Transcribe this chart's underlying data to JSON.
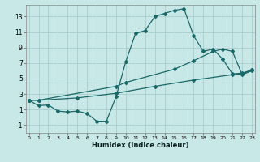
{
  "bg_color": "#c8e8e8",
  "grid_color": "#aacece",
  "line_color": "#1a6868",
  "xlim": [
    -0.3,
    23.3
  ],
  "ylim": [
    -2.0,
    14.5
  ],
  "xticks": [
    0,
    1,
    2,
    3,
    4,
    5,
    6,
    7,
    8,
    9,
    10,
    11,
    12,
    13,
    14,
    15,
    16,
    17,
    18,
    19,
    20,
    21,
    22,
    23
  ],
  "yticks": [
    -1,
    1,
    3,
    5,
    7,
    9,
    11,
    13
  ],
  "xlabel": "Humidex (Indice chaleur)",
  "curve1_x": [
    0,
    1,
    2,
    3,
    4,
    5,
    6,
    7,
    8,
    9,
    10,
    11,
    12,
    13,
    14,
    15,
    16,
    17,
    18,
    19,
    20,
    21,
    22,
    23
  ],
  "curve1_y": [
    2.2,
    1.5,
    1.6,
    0.8,
    0.7,
    0.8,
    0.5,
    -0.5,
    -0.5,
    2.7,
    7.2,
    10.8,
    11.2,
    13.0,
    13.4,
    13.8,
    14.0,
    10.5,
    8.5,
    8.8,
    7.5,
    5.6,
    5.7,
    6.1
  ],
  "curve2_x": [
    0,
    1,
    9,
    10,
    15,
    17,
    19,
    20,
    21,
    22,
    23
  ],
  "curve2_y": [
    2.2,
    2.2,
    4.0,
    4.5,
    6.2,
    7.3,
    8.5,
    8.8,
    8.5,
    5.5,
    6.0
  ],
  "curve3_x": [
    0,
    1,
    5,
    9,
    13,
    17,
    21,
    22,
    23
  ],
  "curve3_y": [
    2.2,
    2.2,
    2.5,
    3.1,
    4.0,
    4.8,
    5.5,
    5.6,
    6.1
  ]
}
